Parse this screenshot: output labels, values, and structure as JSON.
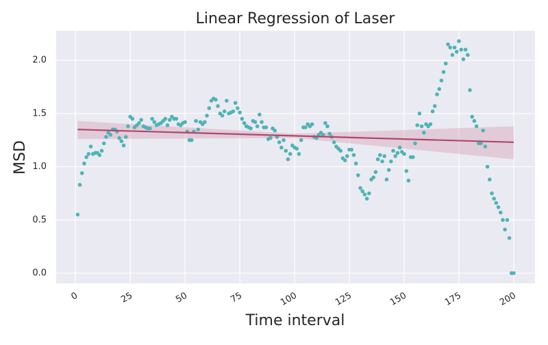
{
  "chart_data": {
    "type": "regplot",
    "title": "Linear Regression of Laser",
    "x_label": "Time interval",
    "y_label": "MSD",
    "point_color": "#4fb3b5",
    "line_color": "#b0466c",
    "band_color": "#d9a7ba",
    "grid": true,
    "xlim": [
      -8.8,
      209.7
    ],
    "ylim": [
      -0.096,
      2.277
    ],
    "xticks": [
      0,
      25,
      50,
      75,
      100,
      125,
      150,
      175,
      200
    ],
    "yticks": [
      {
        "value": 0,
        "label": "0.0"
      },
      {
        "value": 0.5,
        "label": "0.5"
      },
      {
        "value": 1,
        "label": "1.0"
      },
      {
        "value": 1.5,
        "label": "1.5"
      },
      {
        "value": 2,
        "label": "2.0"
      }
    ],
    "x": [
      1,
      2,
      3,
      4,
      5,
      6,
      7,
      8,
      9,
      10,
      11,
      12,
      13,
      14,
      15,
      16,
      17,
      18,
      19,
      20,
      21,
      22,
      23,
      24,
      25,
      26,
      27,
      28,
      29,
      30,
      31,
      32,
      33,
      34,
      35,
      36,
      37,
      38,
      39,
      40,
      41,
      42,
      43,
      44,
      45,
      46,
      47,
      48,
      49,
      50,
      51,
      52,
      53,
      54,
      55,
      56,
      57,
      58,
      59,
      60,
      61,
      62,
      63,
      64,
      65,
      66,
      67,
      68,
      69,
      70,
      71,
      72,
      73,
      74,
      75,
      76,
      77,
      78,
      79,
      80,
      81,
      82,
      83,
      84,
      85,
      86,
      87,
      88,
      89,
      90,
      91,
      92,
      93,
      94,
      95,
      96,
      97,
      98,
      99,
      100,
      101,
      102,
      103,
      104,
      105,
      106,
      107,
      108,
      109,
      110,
      111,
      112,
      113,
      114,
      115,
      116,
      117,
      118,
      119,
      120,
      121,
      122,
      123,
      124,
      125,
      126,
      127,
      128,
      129,
      130,
      131,
      132,
      133,
      134,
      135,
      136,
      137,
      138,
      139,
      140,
      141,
      142,
      143,
      144,
      145,
      146,
      147,
      148,
      149,
      150,
      151,
      152,
      153,
      154,
      155,
      156,
      157,
      158,
      159,
      160,
      161,
      162,
      163,
      164,
      165,
      166,
      167,
      168,
      169,
      170,
      171,
      172,
      173,
      174,
      175,
      176,
      177,
      178,
      179,
      180,
      181,
      182,
      183,
      184,
      185,
      186,
      187,
      188,
      189,
      190,
      191,
      192,
      193,
      194,
      195,
      196,
      197,
      198,
      199,
      200
    ],
    "values": [
      0.55,
      0.83,
      0.94,
      1.03,
      1.09,
      1.12,
      1.19,
      1.12,
      1.13,
      1.13,
      1.11,
      1.15,
      1.22,
      1.28,
      1.32,
      1.3,
      1.35,
      1.35,
      1.33,
      1.27,
      1.24,
      1.2,
      1.28,
      1.38,
      1.47,
      1.45,
      1.37,
      1.39,
      1.41,
      1.44,
      1.38,
      1.37,
      1.36,
      1.36,
      1.45,
      1.42,
      1.39,
      1.4,
      1.41,
      1.43,
      1.45,
      1.39,
      1.44,
      1.47,
      1.45,
      1.45,
      1.4,
      1.39,
      1.41,
      1.42,
      1.33,
      1.25,
      1.25,
      1.33,
      1.43,
      1.35,
      1.42,
      1.4,
      1.42,
      1.48,
      1.55,
      1.62,
      1.64,
      1.63,
      1.57,
      1.5,
      1.48,
      1.52,
      1.62,
      1.5,
      1.51,
      1.52,
      1.6,
      1.55,
      1.51,
      1.45,
      1.41,
      1.38,
      1.37,
      1.36,
      1.43,
      1.42,
      1.38,
      1.49,
      1.42,
      1.37,
      1.37,
      1.26,
      1.27,
      1.36,
      1.34,
      1.28,
      1.23,
      1.18,
      1.25,
      1.15,
      1.07,
      1.12,
      1.2,
      1.18,
      1.17,
      1.12,
      1.25,
      1.37,
      1.37,
      1.4,
      1.38,
      1.4,
      1.28,
      1.27,
      1.3,
      1.32,
      1.3,
      1.41,
      1.38,
      1.31,
      1.28,
      1.23,
      1.19,
      1.17,
      1.15,
      1.08,
      1.06,
      1.1,
      1.16,
      1.16,
      1.11,
      1.03,
      0.92,
      0.8,
      0.77,
      0.74,
      0.7,
      0.75,
      0.88,
      0.9,
      0.95,
      1.07,
      1.11,
      1.05,
      1.1,
      0.88,
      0.97,
      1.05,
      1.15,
      1.1,
      1.13,
      1.18,
      1.14,
      1.12,
      0.96,
      0.87,
      1.09,
      1.09,
      1.22,
      1.39,
      1.5,
      1.38,
      1.32,
      1.4,
      1.38,
      1.4,
      1.52,
      1.57,
      1.68,
      1.73,
      1.81,
      1.89,
      1.97,
      2.15,
      2.12,
      2.05,
      2.12,
      2.08,
      2.18,
      2.1,
      2.01,
      2.1,
      2.05,
      1.72,
      1.47,
      1.43,
      1.38,
      1.22,
      1.22,
      1.34,
      1.19,
      1.0,
      0.88,
      0.75,
      0.7,
      0.66,
      0.62,
      0.57,
      0.5,
      0.41,
      0.5,
      0.33,
      0.0,
      0.0
    ],
    "regression": {
      "x": [
        1,
        200
      ],
      "y": [
        1.35,
        1.23
      ]
    },
    "ci": {
      "x": [
        1,
        100,
        200
      ],
      "lower": [
        1.26,
        1.27,
        1.07
      ],
      "upper": [
        1.43,
        1.31,
        1.38
      ]
    }
  }
}
